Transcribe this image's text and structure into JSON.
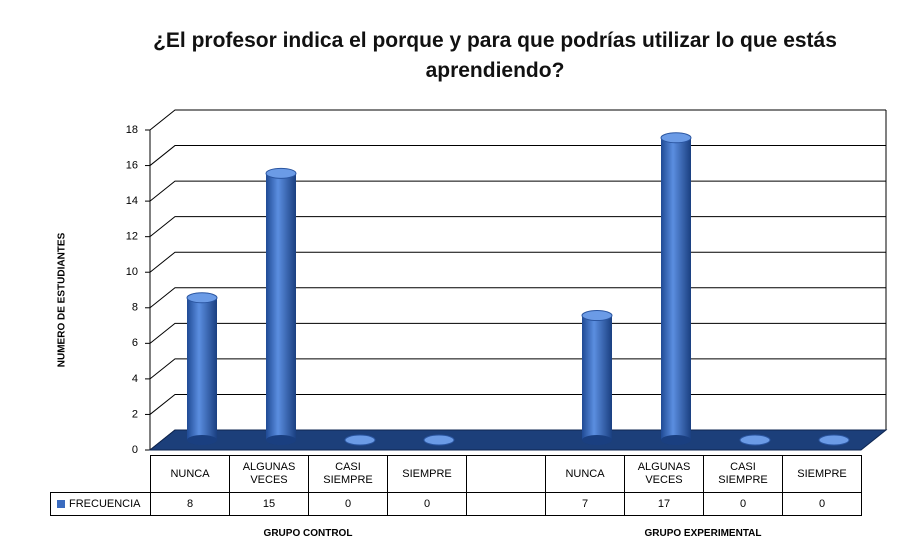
{
  "chart_data": {
    "type": "bar3d",
    "title": "¿El profesor indica el porque y para que podrías utilizar lo que estás aprendiendo?",
    "y_label": "NUMERO DE ESTUDIANTES",
    "categories": [
      "NUNCA",
      "ALGUNAS VECES",
      "CASI SIEMPRE",
      "SIEMPRE",
      null,
      "NUNCA",
      "ALGUNAS VECES",
      "CASI SIEMPRE",
      "SIEMPRE"
    ],
    "groups": [
      "GRUPO CONTROL",
      "GRUPO EXPERIMENTAL"
    ],
    "series": [
      {
        "name": "FRECUENCIA",
        "color": "#3a6bbf",
        "values": [
          8,
          15,
          0,
          0,
          null,
          7,
          17,
          0,
          0
        ]
      }
    ],
    "ylim": [
      0,
      18
    ],
    "yticks": [
      0,
      2,
      4,
      6,
      8,
      10,
      12,
      14,
      16,
      18
    ],
    "grid": true,
    "data_table": true
  }
}
